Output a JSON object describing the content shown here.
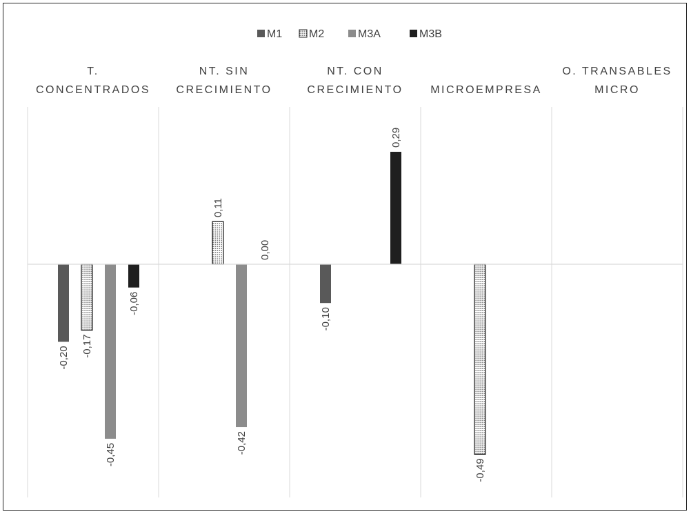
{
  "chart_data": {
    "type": "bar",
    "categories": [
      [
        "T.",
        "CONCENTRADOS"
      ],
      [
        "NT. SIN",
        "CRECIMIENTO"
      ],
      [
        "NT. CON",
        "CRECIMIENTO"
      ],
      [
        "MICROEMPRESA"
      ],
      [
        "O. TRANSABLES",
        "MICRO"
      ]
    ],
    "series": [
      {
        "name": "M1",
        "color": "#595959",
        "pattern": "solid",
        "values": [
          -0.2,
          null,
          -0.1,
          null,
          null
        ],
        "labels": [
          "-0,20",
          "",
          "-0,10",
          "",
          ""
        ]
      },
      {
        "name": "M2",
        "color": "#ffffff",
        "pattern": "dotted",
        "values": [
          -0.17,
          0.11,
          null,
          -0.49,
          null
        ],
        "labels": [
          "-0,17",
          "0,11",
          "",
          "-0,49",
          ""
        ]
      },
      {
        "name": "M3A",
        "color": "#8c8c8c",
        "pattern": "solid",
        "values": [
          -0.45,
          -0.42,
          null,
          null,
          null
        ],
        "labels": [
          "-0,45",
          "-0,42",
          "",
          "",
          ""
        ]
      },
      {
        "name": "M3B",
        "color": "#1f1f1f",
        "pattern": "solid",
        "values": [
          -0.06,
          0.0,
          0.29,
          null,
          null
        ],
        "labels": [
          "-0,06",
          "0,00",
          "0,29",
          "",
          ""
        ]
      }
    ],
    "ylim": [
      -0.55,
      0.4
    ],
    "legend_position": "top-center",
    "grid": "vertical category separators",
    "title": "",
    "xlabel": "",
    "ylabel": ""
  }
}
